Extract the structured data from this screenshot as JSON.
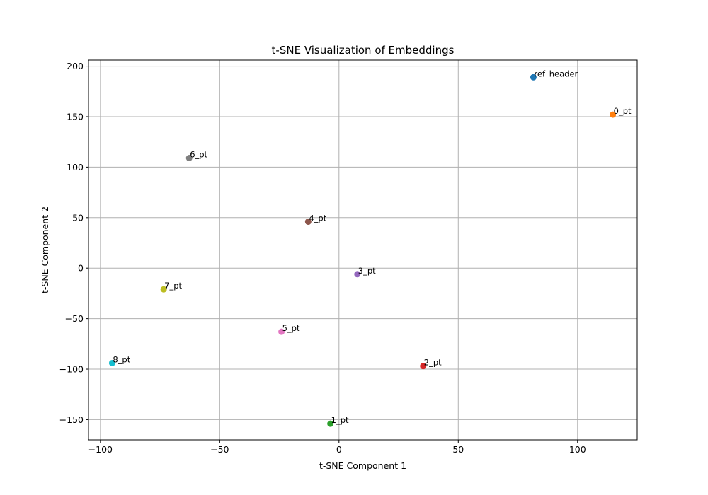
{
  "chart_data": {
    "type": "scatter",
    "title": "t-SNE Visualization of Embeddings",
    "xlabel": "t-SNE Component 1",
    "ylabel": "t-SNE Component 2",
    "xlim": [
      -105,
      125
    ],
    "ylim": [
      -170,
      206
    ],
    "xticks": [
      -100,
      -50,
      0,
      50,
      100
    ],
    "xtick_labels": [
      "−100",
      "−50",
      "0",
      "50",
      "100"
    ],
    "yticks": [
      -150,
      -100,
      -50,
      0,
      50,
      100,
      150,
      200
    ],
    "ytick_labels": [
      "−150",
      "−100",
      "−50",
      "0",
      "50",
      "100",
      "150",
      "200"
    ],
    "grid": true,
    "points": [
      {
        "label": "ref_header",
        "x": 81.5,
        "y": 189,
        "color": "#1f77b4"
      },
      {
        "label": "0_pt",
        "x": 114.8,
        "y": 152,
        "color": "#ff7f0e"
      },
      {
        "label": "1_pt",
        "x": -3.6,
        "y": -154,
        "color": "#2ca02c"
      },
      {
        "label": "2_pt",
        "x": 35.3,
        "y": -97,
        "color": "#d62728"
      },
      {
        "label": "3_pt",
        "x": 7.7,
        "y": -6,
        "color": "#9467bd"
      },
      {
        "label": "4_pt",
        "x": -12.9,
        "y": 46,
        "color": "#8c564b"
      },
      {
        "label": "5_pt",
        "x": -24.1,
        "y": -63,
        "color": "#e377c2"
      },
      {
        "label": "6_pt",
        "x": -62.8,
        "y": 109,
        "color": "#7f7f7f"
      },
      {
        "label": "7_pt",
        "x": -73.5,
        "y": -21,
        "color": "#bcbd22"
      },
      {
        "label": "8_pt",
        "x": -95.1,
        "y": -94,
        "color": "#17becf"
      }
    ]
  }
}
